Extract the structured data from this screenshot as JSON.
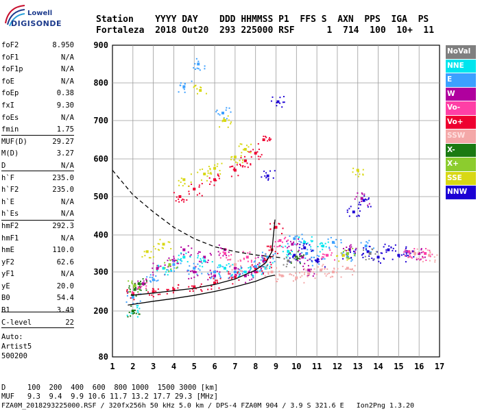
{
  "logo": {
    "line1": "Lowell",
    "line2": "DIGISONDE"
  },
  "header": {
    "row1": "Station    YYYY DAY    DDD HHMMSS P1  FFS S  AXN  PPS  IGA  PS",
    "row2": "Fortaleza  2018 Out20  293 225000 RSF      1  714  100  10+  11"
  },
  "params": [
    {
      "name": "foF2",
      "value": "8.950"
    },
    {
      "name": "foF1",
      "value": "N/A"
    },
    {
      "name": "foF1p",
      "value": "N/A"
    },
    {
      "name": "foE",
      "value": "N/A"
    },
    {
      "name": "foEp",
      "value": "0.38"
    },
    {
      "name": "fxI",
      "value": "9.30"
    },
    {
      "name": "foEs",
      "value": "N/A"
    },
    {
      "name": "fmin",
      "value": "1.75"
    },
    {
      "name": "MUF(D)",
      "value": "29.27"
    },
    {
      "name": "M(D)",
      "value": "3.27"
    },
    {
      "name": "D",
      "value": "N/A"
    },
    {
      "name": "h`F",
      "value": "235.0"
    },
    {
      "name": "h`F2",
      "value": "235.0"
    },
    {
      "name": "h`E",
      "value": "N/A"
    },
    {
      "name": "h`Es",
      "value": "N/A"
    },
    {
      "name": "hmF2",
      "value": "292.3"
    },
    {
      "name": "hmF1",
      "value": "N/A"
    },
    {
      "name": "hmE",
      "value": "110.0"
    },
    {
      "name": "yF2",
      "value": "62.6"
    },
    {
      "name": "yF1",
      "value": "N/A"
    },
    {
      "name": "yE",
      "value": "20.0"
    },
    {
      "name": "B0",
      "value": "54.4"
    },
    {
      "name": "B1",
      "value": "3.49"
    },
    {
      "name": "C-level",
      "value": "22"
    }
  ],
  "auto": {
    "line1": "Auto:",
    "line2": "Artist5",
    "line3": "500200"
  },
  "legend": [
    {
      "label": "NoVal",
      "color": "#7f7f7f"
    },
    {
      "label": "NNE",
      "color": "#00e5ee"
    },
    {
      "label": "E",
      "color": "#3ca0ff"
    },
    {
      "label": "W",
      "color": "#b0009e"
    },
    {
      "label": "Vo-",
      "color": "#ff3fa6"
    },
    {
      "label": "Vo+",
      "color": "#ee0030"
    },
    {
      "label": "SSW",
      "color": "#f4a8a8"
    },
    {
      "label": "X-",
      "color": "#1b7a12"
    },
    {
      "label": "X+",
      "color": "#8ccc2e"
    },
    {
      "label": "SSE",
      "color": "#d8d814"
    },
    {
      "label": "NNW",
      "color": "#1c00d4"
    }
  ],
  "bottom": {
    "line1": "D     100  200  400  600  800 1000  1500 3000 [km]",
    "line2": "MUF   9.3  9.4  9.9 10.6 11.7 13.2 17.7 29.3 [MHz]",
    "line3": "FZA0M_2018293225000.RSF / 320fx256h 50 kHz 5.0 km / DPS-4 FZA0M 904 / 3.9 S 321.6 E   Ion2Png 1.3.20"
  },
  "chart_data": {
    "type": "scatter",
    "xlim": [
      1,
      17
    ],
    "ylim": [
      80,
      900
    ],
    "x_ticks": [
      1,
      2,
      3,
      4,
      5,
      6,
      7,
      8,
      9,
      10,
      11,
      12,
      13,
      14,
      15,
      16,
      17
    ],
    "y_ticks": [
      80,
      200,
      300,
      400,
      500,
      600,
      700,
      800,
      900
    ],
    "grid": true,
    "series": [
      {
        "name": "W",
        "color": "#b0009e",
        "points": [
          [
            2.5,
            270
          ],
          [
            3.2,
            310
          ],
          [
            4,
            330
          ],
          [
            4.5,
            360
          ],
          [
            5,
            300
          ],
          [
            5.5,
            340
          ],
          [
            6,
            290
          ],
          [
            6.5,
            360
          ],
          [
            7,
            310
          ],
          [
            7.5,
            290
          ],
          [
            8,
            300
          ],
          [
            8.4,
            330
          ],
          [
            9.8,
            375
          ],
          [
            10.3,
            340
          ],
          [
            10.6,
            305
          ],
          [
            12.6,
            360
          ],
          [
            13.2,
            495
          ],
          [
            16,
            350
          ]
        ]
      },
      {
        "name": "Vo+",
        "color": "#ee0030",
        "points": [
          [
            2,
            245
          ],
          [
            3,
            250
          ],
          [
            4,
            255
          ],
          [
            5,
            262
          ],
          [
            6,
            272
          ],
          [
            7,
            287
          ],
          [
            8,
            310
          ],
          [
            8.5,
            330
          ],
          [
            8.8,
            360
          ],
          [
            9,
            420
          ],
          [
            4.3,
            500
          ],
          [
            5,
            520
          ],
          [
            6,
            545
          ],
          [
            7,
            570
          ],
          [
            7.5,
            595
          ],
          [
            8,
            615
          ],
          [
            8.4,
            650
          ]
        ]
      },
      {
        "name": "E",
        "color": "#3ca0ff",
        "points": [
          [
            2,
            235
          ],
          [
            3,
            280
          ],
          [
            4,
            320
          ],
          [
            4.5,
            790
          ],
          [
            5,
            310
          ],
          [
            5.2,
            850
          ],
          [
            6,
            300
          ],
          [
            6.4,
            720
          ],
          [
            7,
            300
          ],
          [
            8,
            315
          ],
          [
            8.6,
            340
          ],
          [
            9.9,
            390
          ],
          [
            10.5,
            350
          ],
          [
            11,
            330
          ],
          [
            11.8,
            380
          ],
          [
            12.5,
            340
          ],
          [
            13.4,
            370
          ]
        ]
      },
      {
        "name": "NNE",
        "color": "#00e5ee",
        "points": [
          [
            2,
            200
          ],
          [
            3.5,
            310
          ],
          [
            4.5,
            340
          ],
          [
            5.5,
            330
          ],
          [
            6.5,
            310
          ],
          [
            7.5,
            300
          ],
          [
            8.5,
            310
          ],
          [
            9.6,
            355
          ],
          [
            10.4,
            380
          ],
          [
            11.3,
            370
          ]
        ]
      },
      {
        "name": "NNW",
        "color": "#1c00d4",
        "points": [
          [
            9.9,
            345
          ],
          [
            10.4,
            365
          ],
          [
            11,
            330
          ],
          [
            12.5,
            350
          ],
          [
            13.5,
            355
          ],
          [
            14,
            340
          ],
          [
            14.5,
            360
          ],
          [
            15,
            345
          ],
          [
            15.4,
            355
          ],
          [
            12.8,
            460
          ],
          [
            13.3,
            490
          ],
          [
            8.6,
            555
          ],
          [
            9.1,
            750
          ]
        ]
      },
      {
        "name": "SSE",
        "color": "#d8d814",
        "points": [
          [
            2.7,
            355
          ],
          [
            3.5,
            375
          ],
          [
            4.5,
            545
          ],
          [
            5.5,
            560
          ],
          [
            6,
            575
          ],
          [
            7,
            605
          ],
          [
            7.5,
            625
          ],
          [
            6.5,
            700
          ],
          [
            5.3,
            780
          ],
          [
            13,
            570
          ],
          [
            12.3,
            345
          ]
        ]
      },
      {
        "name": "SSW",
        "color": "#f4a8a8",
        "points": [
          [
            8.8,
            300
          ],
          [
            9.3,
            290
          ],
          [
            10,
            285
          ],
          [
            10.6,
            295
          ],
          [
            11.2,
            305
          ],
          [
            11.8,
            300
          ],
          [
            12.5,
            310
          ],
          [
            15.8,
            350
          ],
          [
            16.5,
            345
          ],
          [
            7,
            320
          ]
        ]
      },
      {
        "name": "Vo-",
        "color": "#ff3fa6",
        "points": [
          [
            2.3,
            260
          ],
          [
            6.5,
            350
          ],
          [
            7.6,
            340
          ],
          [
            15.5,
            355
          ],
          [
            16.3,
            350
          ],
          [
            9.2,
            385
          ],
          [
            11.5,
            345
          ]
        ]
      },
      {
        "name": "X-",
        "color": "#1b7a12",
        "points": [
          [
            2,
            200
          ],
          [
            2.1,
            255
          ],
          [
            2.3,
            270
          ],
          [
            10,
            340
          ]
        ]
      },
      {
        "name": "X+",
        "color": "#8ccc2e",
        "points": [
          [
            2.1,
            265
          ],
          [
            3.8,
            320
          ],
          [
            12.5,
            350
          ]
        ]
      },
      {
        "name": "NoVal",
        "color": "#7f7f7f",
        "points": [
          [
            9.6,
            330
          ],
          [
            13.6,
            350
          ]
        ]
      }
    ],
    "profile_curves": [
      {
        "name": "true-height profile",
        "style": "solid",
        "points": [
          [
            1.75,
            215
          ],
          [
            3,
            225
          ],
          [
            4,
            232
          ],
          [
            5,
            240
          ],
          [
            6,
            250
          ],
          [
            7,
            262
          ],
          [
            8,
            276
          ],
          [
            8.6,
            288
          ],
          [
            8.95,
            292
          ]
        ]
      },
      {
        "name": "MUF curve",
        "style": "dashed",
        "points": [
          [
            1,
            570
          ],
          [
            2,
            505
          ],
          [
            3,
            460
          ],
          [
            4,
            420
          ],
          [
            5,
            390
          ],
          [
            6,
            368
          ],
          [
            7,
            355
          ],
          [
            8,
            346
          ],
          [
            9,
            340
          ],
          [
            9.3,
            338
          ]
        ]
      },
      {
        "name": "virtual height trace",
        "style": "solid",
        "points": [
          [
            1.9,
            240
          ],
          [
            3,
            246
          ],
          [
            4,
            252
          ],
          [
            5,
            258
          ],
          [
            6,
            268
          ],
          [
            7,
            282
          ],
          [
            8,
            305
          ],
          [
            8.5,
            325
          ],
          [
            8.8,
            355
          ],
          [
            8.95,
            440
          ]
        ]
      }
    ]
  }
}
